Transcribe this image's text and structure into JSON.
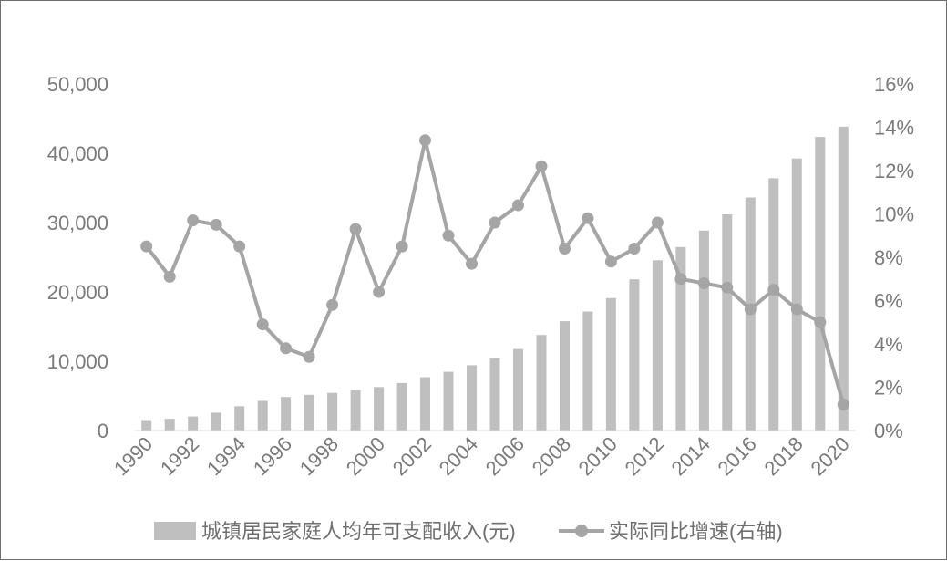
{
  "chart_data": {
    "type": "bar+line",
    "categories": [
      "1990",
      "1991",
      "1992",
      "1993",
      "1994",
      "1995",
      "1996",
      "1997",
      "1998",
      "1999",
      "2000",
      "2001",
      "2002",
      "2003",
      "2004",
      "2005",
      "2006",
      "2007",
      "2008",
      "2009",
      "2010",
      "2011",
      "2012",
      "2013",
      "2014",
      "2015",
      "2016",
      "2017",
      "2018",
      "2019",
      "2020"
    ],
    "x_tick_labels": [
      "1990",
      "1992",
      "1994",
      "1996",
      "1998",
      "2000",
      "2002",
      "2004",
      "2006",
      "2008",
      "2010",
      "2012",
      "2014",
      "2016",
      "2018",
      "2020"
    ],
    "series": [
      {
        "name": "城镇居民家庭人均年可支配收入(元)",
        "type": "bar",
        "axis": "left",
        "color": "#bfbfbf",
        "values": [
          1510,
          1700,
          2030,
          2580,
          3500,
          4280,
          4840,
          5160,
          5430,
          5850,
          6280,
          6860,
          7700,
          8470,
          9420,
          10490,
          11760,
          13790,
          15780,
          17170,
          19110,
          21810,
          24560,
          26470,
          28840,
          31190,
          33620,
          36400,
          39250,
          42360,
          43830
        ]
      },
      {
        "name": "实际同比增速(右轴)",
        "type": "line",
        "axis": "right",
        "color": "#a5a5a5",
        "values": [
          8.5,
          7.1,
          9.7,
          9.5,
          8.5,
          4.9,
          3.8,
          3.4,
          5.8,
          9.3,
          6.4,
          8.5,
          13.4,
          9.0,
          7.7,
          9.6,
          10.4,
          12.2,
          8.4,
          9.8,
          7.8,
          8.4,
          9.6,
          7.0,
          6.8,
          6.6,
          5.6,
          6.5,
          5.6,
          5.0,
          1.2
        ]
      }
    ],
    "y_left": {
      "min": 0,
      "max": 50000,
      "ticks": [
        "0",
        "10,000",
        "20,000",
        "30,000",
        "40,000",
        "50,000"
      ]
    },
    "y_right": {
      "min": 0,
      "max": 16,
      "ticks": [
        "0%",
        "2%",
        "4%",
        "6%",
        "8%",
        "10%",
        "12%",
        "14%",
        "16%"
      ]
    },
    "grid": false,
    "legend_position": "bottom"
  }
}
